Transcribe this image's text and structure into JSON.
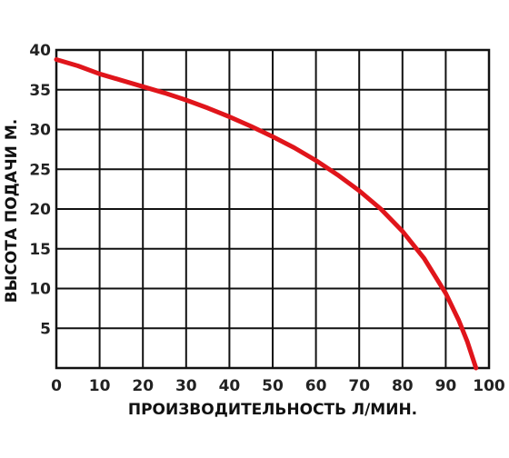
{
  "chart_data": {
    "type": "line",
    "title": "",
    "xlabel": "ПРОИЗВОДИТЕЛЬНОСТЬ Л/МИН.",
    "ylabel": "ВЫСОТА ПОДАЧИ М.",
    "xlim": [
      0,
      100
    ],
    "ylim": [
      0,
      40
    ],
    "x_ticks": [
      "0",
      "10",
      "20",
      "30",
      "40",
      "50",
      "60",
      "70",
      "80",
      "90",
      "100"
    ],
    "y_ticks": [
      "5",
      "10",
      "15",
      "20",
      "25",
      "30",
      "35",
      "40"
    ],
    "grid": true,
    "series": [
      {
        "color": "#e0151b",
        "x": [
          0,
          5,
          10,
          15,
          20,
          25,
          30,
          35,
          40,
          45,
          50,
          55,
          60,
          65,
          70,
          75,
          80,
          85,
          90,
          93,
          95,
          97
        ],
        "y": [
          38.8,
          38.0,
          37.0,
          36.2,
          35.4,
          34.6,
          33.7,
          32.7,
          31.6,
          30.4,
          29.1,
          27.7,
          26.1,
          24.3,
          22.3,
          20.0,
          17.2,
          13.8,
          9.4,
          6.0,
          3.3,
          0
        ]
      }
    ]
  }
}
